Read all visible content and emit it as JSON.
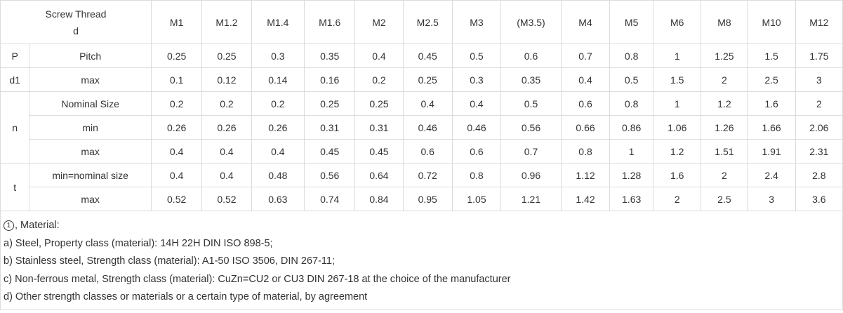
{
  "header": {
    "title_line1": "Screw Thread",
    "title_line2": "d",
    "sizes": [
      "M1",
      "M1.2",
      "M1.4",
      "M1.6",
      "M2",
      "M2.5",
      "M3",
      "(M3.5)",
      "M4",
      "M5",
      "M6",
      "M8",
      "M10",
      "M12"
    ]
  },
  "rows": [
    {
      "symbol": "P",
      "attribute": "Pitch",
      "values": [
        "0.25",
        "0.25",
        "0.3",
        "0.35",
        "0.4",
        "0.45",
        "0.5",
        "0.6",
        "0.7",
        "0.8",
        "1",
        "1.25",
        "1.5",
        "1.75"
      ]
    },
    {
      "symbol": "d1",
      "attribute": "max",
      "values": [
        "0.1",
        "0.12",
        "0.14",
        "0.16",
        "0.2",
        "0.25",
        "0.3",
        "0.35",
        "0.4",
        "0.5",
        "1.5",
        "2",
        "2.5",
        "3"
      ]
    },
    {
      "symbol": "n",
      "attribute": "Nominal Size",
      "values": [
        "0.2",
        "0.2",
        "0.2",
        "0.25",
        "0.25",
        "0.4",
        "0.4",
        "0.5",
        "0.6",
        "0.8",
        "1",
        "1.2",
        "1.6",
        "2"
      ]
    },
    {
      "symbol": "",
      "attribute": "min",
      "values": [
        "0.26",
        "0.26",
        "0.26",
        "0.31",
        "0.31",
        "0.46",
        "0.46",
        "0.56",
        "0.66",
        "0.86",
        "1.06",
        "1.26",
        "1.66",
        "2.06"
      ]
    },
    {
      "symbol": "",
      "attribute": "max",
      "values": [
        "0.4",
        "0.4",
        "0.4",
        "0.45",
        "0.45",
        "0.6",
        "0.6",
        "0.7",
        "0.8",
        "1",
        "1.2",
        "1.51",
        "1.91",
        "2.31"
      ]
    },
    {
      "symbol": "t",
      "attribute": "min=nominal size",
      "values": [
        "0.4",
        "0.4",
        "0.48",
        "0.56",
        "0.64",
        "0.72",
        "0.8",
        "0.96",
        "1.12",
        "1.28",
        "1.6",
        "2",
        "2.4",
        "2.8"
      ]
    },
    {
      "symbol": "",
      "attribute": "max",
      "values": [
        "0.52",
        "0.52",
        "0.63",
        "0.74",
        "0.84",
        "0.95",
        "1.05",
        "1.21",
        "1.42",
        "1.63",
        "2",
        "2.5",
        "3",
        "3.6"
      ]
    }
  ],
  "notes": {
    "circle_mark": "1",
    "heading": ", Material:",
    "lines": [
      "a) Steel, Property class (material): 14H 22H DIN ISO 898-5;",
      "b) Stainless steel, Strength class (material): A1-50 ISO 3506, DIN 267-11;",
      "c) Non-ferrous metal, Strength class (material): CuZn=CU2 or CU3 DIN 267-18 at the choice of the manufacturer",
      "d) Other strength classes or materials or a certain type of material, by agreement"
    ]
  }
}
